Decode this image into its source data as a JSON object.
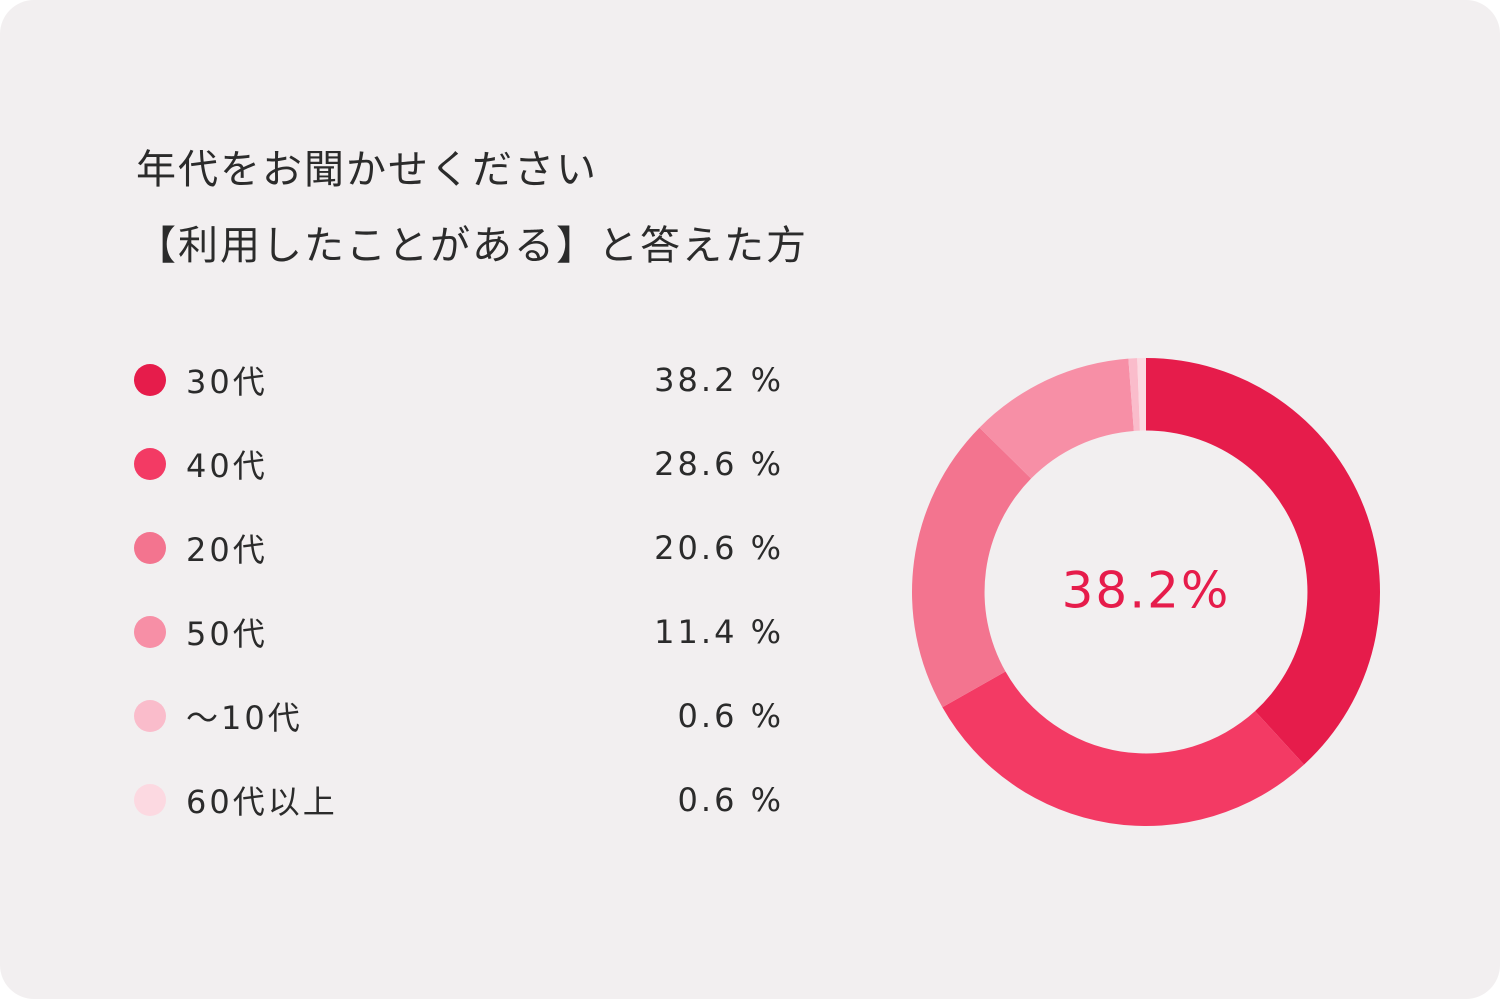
{
  "colors": {
    "background": "#f2eff0",
    "text": "#2b2b2b",
    "accent": "#e61c4b"
  },
  "chart_data": {
    "type": "pie",
    "title": [
      "年代をお聞かせください",
      "【利用したことがある】と答えた方"
    ],
    "categories": [
      "30代",
      "40代",
      "20代",
      "50代",
      "～10代",
      "60代以上"
    ],
    "values": [
      38.2,
      28.6,
      20.6,
      11.4,
      0.6,
      0.6
    ],
    "value_labels": [
      "38.2 %",
      "28.6 %",
      "20.6 %",
      "11.4 %",
      "0.6 %",
      "0.6 %"
    ],
    "colors": [
      "#e61c4b",
      "#f33a64",
      "#f3748f",
      "#f78fa6",
      "#fabccb",
      "#fcd9e1"
    ],
    "center_label": "38.2%",
    "inner_radius_ratio": 0.69,
    "legend": "left"
  }
}
